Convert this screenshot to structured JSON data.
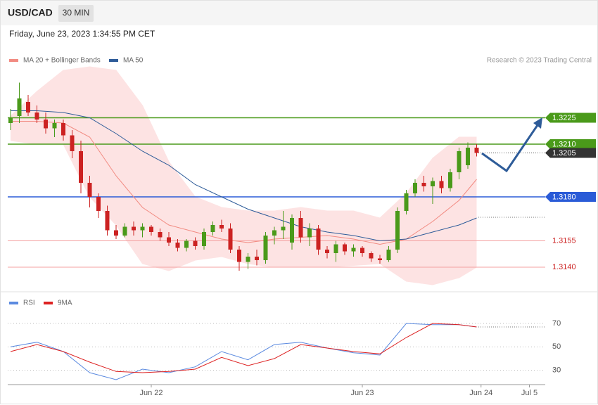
{
  "chart_data": {
    "type": "candlestick",
    "title": "USD/CAD",
    "timeframe": "30 MIN",
    "subtitle": "Friday, June 23, 2023 1:34:55 PM CET",
    "attribution": "Research © 2023 Trading Central",
    "xlim": [
      -0.32,
      60.8
    ],
    "xticks": [
      {
        "value": 16,
        "label": "Jun 22"
      },
      {
        "value": 40,
        "label": "Jun 23"
      },
      {
        "value": 53.5,
        "label": "Jun 24"
      },
      {
        "value": 59,
        "label": "Jul 5"
      }
    ],
    "ylim": [
      1.3126,
      1.3254
    ],
    "up_color": "#4a9a1a",
    "down_color": "#cc2222",
    "candles": [
      [
        1.3222,
        1.323,
        1.3218,
        1.3225
      ],
      [
        1.3226,
        1.3245,
        1.3222,
        1.3236
      ],
      [
        1.3234,
        1.3238,
        1.3226,
        1.3228
      ],
      [
        1.3228,
        1.3232,
        1.3222,
        1.3224
      ],
      [
        1.3224,
        1.3228,
        1.3216,
        1.3219
      ],
      [
        1.3219,
        1.3224,
        1.3214,
        1.3222
      ],
      [
        1.3222,
        1.3224,
        1.3212,
        1.3215
      ],
      [
        1.3215,
        1.3218,
        1.3202,
        1.3206
      ],
      [
        1.3206,
        1.3212,
        1.3182,
        1.3188
      ],
      [
        1.3188,
        1.3192,
        1.3174,
        1.318
      ],
      [
        1.318,
        1.3182,
        1.3168,
        1.3172
      ],
      [
        1.3172,
        1.3175,
        1.3158,
        1.3161
      ],
      [
        1.3161,
        1.3164,
        1.3156,
        1.3158
      ],
      [
        1.3158,
        1.3165,
        1.3157,
        1.3163
      ],
      [
        1.3163,
        1.3166,
        1.3158,
        1.3161
      ],
      [
        1.3161,
        1.3165,
        1.3157,
        1.3163
      ],
      [
        1.3163,
        1.3164,
        1.3158,
        1.316
      ],
      [
        1.316,
        1.3162,
        1.3155,
        1.3157
      ],
      [
        1.3157,
        1.316,
        1.3152,
        1.3154
      ],
      [
        1.3154,
        1.3156,
        1.3149,
        1.3151
      ],
      [
        1.3151,
        1.3156,
        1.3149,
        1.3155
      ],
      [
        1.3155,
        1.3157,
        1.315,
        1.3152
      ],
      [
        1.3152,
        1.3162,
        1.315,
        1.316
      ],
      [
        1.316,
        1.3166,
        1.3158,
        1.3164
      ],
      [
        1.3164,
        1.3167,
        1.316,
        1.3162
      ],
      [
        1.3162,
        1.3165,
        1.3148,
        1.315
      ],
      [
        1.315,
        1.3152,
        1.3138,
        1.3143
      ],
      [
        1.3143,
        1.3148,
        1.3139,
        1.3146
      ],
      [
        1.3146,
        1.315,
        1.3141,
        1.3144
      ],
      [
        1.3144,
        1.316,
        1.3142,
        1.3158
      ],
      [
        1.3158,
        1.3163,
        1.3153,
        1.3161
      ],
      [
        1.3161,
        1.3172,
        1.3156,
        1.3163
      ],
      [
        1.3154,
        1.317,
        1.315,
        1.3168
      ],
      [
        1.3168,
        1.3172,
        1.3154,
        1.3157
      ],
      [
        1.3157,
        1.3165,
        1.3152,
        1.3162
      ],
      [
        1.3162,
        1.3164,
        1.3147,
        1.315
      ],
      [
        1.315,
        1.3152,
        1.3145,
        1.3148
      ],
      [
        1.3148,
        1.3155,
        1.3143,
        1.3153
      ],
      [
        1.3153,
        1.3154,
        1.3147,
        1.3149
      ],
      [
        1.3149,
        1.3153,
        1.3146,
        1.3151
      ],
      [
        1.3151,
        1.3152,
        1.3146,
        1.3148
      ],
      [
        1.3148,
        1.3149,
        1.3143,
        1.3145
      ],
      [
        1.3145,
        1.3147,
        1.3142,
        1.3144
      ],
      [
        1.3144,
        1.3152,
        1.3143,
        1.315
      ],
      [
        1.315,
        1.3174,
        1.3148,
        1.3172
      ],
      [
        1.3172,
        1.3184,
        1.317,
        1.3182
      ],
      [
        1.3182,
        1.319,
        1.318,
        1.3188
      ],
      [
        1.3188,
        1.3192,
        1.3183,
        1.3186
      ],
      [
        1.3186,
        1.3191,
        1.3176,
        1.3189
      ],
      [
        1.3189,
        1.3192,
        1.3182,
        1.3185
      ],
      [
        1.3185,
        1.3196,
        1.3183,
        1.3194
      ],
      [
        1.3194,
        1.3208,
        1.319,
        1.3206
      ],
      [
        1.3198,
        1.3211,
        1.3196,
        1.3208
      ],
      [
        1.3208,
        1.321,
        1.3203,
        1.3205
      ]
    ],
    "sample_x": [
      0,
      3,
      6,
      9,
      12,
      15,
      18,
      21,
      24,
      27,
      30,
      33,
      36,
      39,
      42,
      45,
      48,
      51,
      53
    ],
    "indicators": [
      {
        "name": "MA 20 + Bollinger Bands",
        "color": "#f28b82",
        "band_color": "#fde3e3",
        "ma": [
          1.3223,
          1.3223,
          1.3222,
          1.3214,
          1.3192,
          1.3174,
          1.3164,
          1.316,
          1.3156,
          1.3154,
          1.3156,
          1.3157,
          1.3158,
          1.3156,
          1.3153,
          1.3156,
          1.3166,
          1.3178,
          1.319
        ],
        "upper": [
          1.3226,
          1.324,
          1.3252,
          1.3254,
          1.3252,
          1.3232,
          1.32,
          1.318,
          1.3174,
          1.3172,
          1.3172,
          1.3174,
          1.3172,
          1.3172,
          1.3168,
          1.3182,
          1.3202,
          1.3214,
          1.3214
        ],
        "lower": [
          1.3212,
          1.321,
          1.321,
          1.318,
          1.3164,
          1.3142,
          1.3138,
          1.3144,
          1.3146,
          1.3142,
          1.314,
          1.314,
          1.314,
          1.3141,
          1.3142,
          1.3132,
          1.313,
          1.3134,
          1.314
        ]
      },
      {
        "name": "MA 50",
        "color": "#2e5c99",
        "ma": [
          1.3229,
          1.3229,
          1.3228,
          1.3225,
          1.3216,
          1.3206,
          1.3198,
          1.3187,
          1.318,
          1.3173,
          1.3168,
          1.3163,
          1.316,
          1.3158,
          1.3155,
          1.3156,
          1.316,
          1.3164,
          1.3168
        ]
      }
    ],
    "levels": [
      {
        "value": 1.3225,
        "label": "1.3225",
        "color": "#4a9a1a",
        "style": "box",
        "line": "solid"
      },
      {
        "value": 1.321,
        "label": "1.3210",
        "color": "#4a9a1a",
        "style": "box",
        "line": "solid"
      },
      {
        "value": 1.3205,
        "label": "1.3205",
        "color": "#333333",
        "style": "box",
        "line": "dotted"
      },
      {
        "value": 1.318,
        "label": "1.3180",
        "color": "#2a5bd7",
        "style": "box",
        "line": "solid"
      },
      {
        "value": 1.3155,
        "label": "1.3155",
        "color": "#f4a0a0",
        "style": "text",
        "line": "solid"
      },
      {
        "value": 1.314,
        "label": "1.3140",
        "color": "#f4a0a0",
        "style": "text",
        "line": "solid"
      }
    ],
    "rsi_panel": {
      "ylim": [
        19,
        94
      ],
      "yticks": [
        70,
        50,
        30
      ],
      "series": [
        {
          "name": "RSI",
          "color": "#5b8ae0",
          "values": [
            50,
            54,
            46,
            28,
            22,
            31,
            28,
            33,
            46,
            39,
            52,
            54,
            49,
            45,
            43,
            70,
            69,
            69,
            67
          ]
        },
        {
          "name": "9MA",
          "color": "#dd2222",
          "values": [
            46,
            52,
            46,
            37,
            29,
            28,
            29,
            31,
            41,
            34,
            40,
            52,
            49,
            46,
            44,
            58,
            70,
            69,
            67
          ]
        }
      ]
    }
  }
}
